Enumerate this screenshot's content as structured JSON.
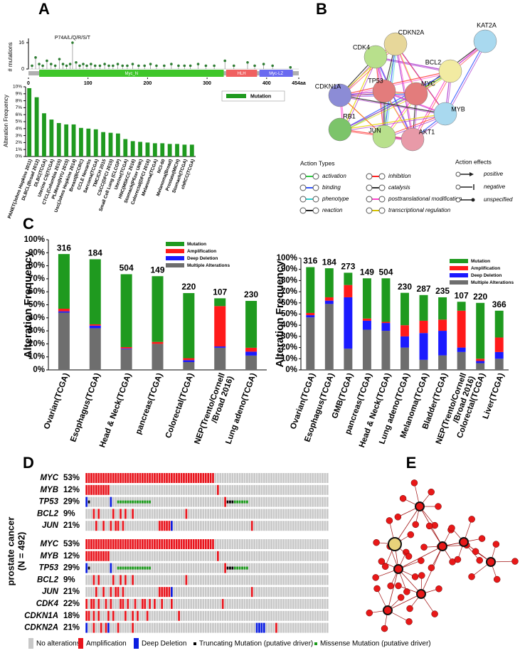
{
  "panel_labels": [
    "A",
    "B",
    "C",
    "D",
    "E"
  ],
  "chart_data": [
    {
      "type": "lollipop",
      "y_label": "# mutations",
      "annotation": "P74A/L/Q/R/S/T",
      "xlim": [
        0,
        454
      ],
      "xticks": [
        0,
        100,
        200,
        300,
        400,
        {
          "value": 454,
          "label": "454aa"
        }
      ],
      "ylim": [
        0,
        16
      ],
      "yticks": [
        0,
        16
      ],
      "color": "#2e7d32",
      "x": [
        6,
        12,
        18,
        24,
        31,
        38,
        45,
        52,
        58,
        64,
        70,
        74,
        80,
        86,
        92,
        98,
        105,
        112,
        120,
        128,
        135,
        142,
        150,
        158,
        166,
        175,
        185,
        195,
        205,
        215,
        228,
        240,
        252,
        262,
        272,
        285,
        298,
        312,
        330,
        345,
        368,
        380,
        395,
        410,
        440
      ],
      "y": [
        2,
        7,
        3,
        2,
        5,
        3,
        2,
        6,
        3,
        2,
        3,
        16,
        4,
        2,
        3,
        2,
        3,
        2,
        2,
        3,
        2,
        2,
        3,
        2,
        2,
        3,
        2,
        2,
        3,
        2,
        2,
        3,
        2,
        2,
        2,
        3,
        2,
        2,
        5,
        2,
        4,
        2,
        3,
        2,
        1
      ],
      "domains": [
        {
          "name": "Myc_N",
          "start": 18,
          "end": 328,
          "color": "#3fc62a"
        },
        {
          "name": "HLH",
          "start": 332,
          "end": 384,
          "color": "#f06060"
        },
        {
          "name": "Myc-LZ",
          "start": 388,
          "end": 444,
          "color": "#6a6af0"
        }
      ]
    },
    {
      "type": "bar",
      "y_label": "Alteration Frequency",
      "categories": [
        "PANET(Johns Hopkins 2011)",
        "DLBCL(Broad 2012)",
        "DLBC(TCGA)",
        "Uterine CS(TCGA)",
        "CTCL(Columbia 2015)",
        "PLMeso(NYU 2015)",
        "Usc(Johns Hopkins 2014)",
        "Breast(BCCRC)",
        "CCLE Novartis",
        "Sarcoma(TCGA)",
        "TMC/CH 2015",
        "CSCC(DFCI 2015)",
        "Small Cell Lung (CLCGP)",
        "Uterine(TCGA)",
        "HNC(MSKCC 2016)",
        "Stomach(Pfizer UHK)",
        "Colorectal(DFCI 2016)",
        "Melanoma(TCGA)",
        "NCI-60",
        "Melanoma(Broad)",
        "Prostate(MICH)",
        "Stomach(TCGA)",
        "chRCC(TCGA)"
      ],
      "series": [
        {
          "name": "Mutation",
          "color": "#1f9a1f",
          "values": [
            9.8,
            8.5,
            6.2,
            5.3,
            4.8,
            4.6,
            4.6,
            4.1,
            4.0,
            3.9,
            3.5,
            3.4,
            3.3,
            2.5,
            2.2,
            2.1,
            2.0,
            1.9,
            1.9,
            1.8,
            1.8,
            1.7,
            1.7
          ]
        }
      ],
      "ylim": [
        0,
        10
      ],
      "yticks": [
        {
          "value": 0,
          "label": "0%"
        },
        {
          "value": 1,
          "label": "1%"
        },
        {
          "value": 2,
          "label": "2%"
        },
        {
          "value": 3,
          "label": "3%"
        },
        {
          "value": 4,
          "label": "4%"
        },
        {
          "value": 5,
          "label": "5%"
        },
        {
          "value": 6,
          "label": "6%"
        },
        {
          "value": 7,
          "label": "7%"
        },
        {
          "value": 8,
          "label": "8%"
        },
        {
          "value": 9,
          "label": "9%"
        },
        {
          "value": 10,
          "label": "10%"
        }
      ]
    },
    {
      "type": "stacked_bar",
      "y_label": "Alteration Frequency",
      "categories": [
        "Ovarian(TCGA)",
        "Esophagus(TCGA)",
        "Head & Neck(TCGA)",
        "pancreas(TCGA)",
        "Colorectal(TCGA)",
        "NEP(Trento/Cornell\n/Broad 2016)",
        "Lung adeno(TCGA)"
      ],
      "sample_counts": [
        316,
        184,
        504,
        149,
        220,
        107,
        230
      ],
      "series": [
        {
          "name": "Multiple Alterations",
          "color": "#6e6e6e",
          "values": [
            44,
            32,
            16,
            20,
            6,
            17,
            11
          ]
        },
        {
          "name": "Deep Deletion",
          "color": "#1a1aff",
          "values": [
            1,
            2,
            0.5,
            0,
            1.5,
            1,
            3
          ]
        },
        {
          "name": "Amplification",
          "color": "#ff1a1a",
          "values": [
            2,
            1,
            1,
            1.5,
            1.5,
            31,
            3
          ]
        },
        {
          "name": "Mutation",
          "color": "#1f9a1f",
          "values": [
            42,
            50,
            56,
            50.5,
            50,
            6,
            36
          ]
        }
      ],
      "ylim": [
        0,
        100
      ],
      "yticks": [
        {
          "value": 0,
          "label": "0%"
        },
        {
          "value": 10,
          "label": "10%"
        },
        {
          "value": 20,
          "label": "20%"
        },
        {
          "value": 30,
          "label": "30%"
        },
        {
          "value": 40,
          "label": "40%"
        },
        {
          "value": 50,
          "label": "50%"
        },
        {
          "value": 60,
          "label": "60%"
        },
        {
          "value": 70,
          "label": "70%"
        },
        {
          "value": 80,
          "label": "80%"
        },
        {
          "value": 90,
          "label": "90%"
        },
        {
          "value": 100,
          "label": "100%"
        }
      ]
    },
    {
      "type": "stacked_bar",
      "y_label": "Alteration Frequency",
      "categories": [
        "Ovarian(TCGA)",
        "Esophagus(TCGA)",
        "GMB(TCGA)",
        "pancreas(TCGA)",
        "Head & Neck(TCGA)",
        "Lung adeno(TCGA)",
        "Melanoma(TCGA)",
        "Bladder(TCGA)",
        "NEP(Trento/Cornell\n/Broad 2016)",
        "Colorectal(TCGA)",
        "Liver(TCGA)"
      ],
      "sample_counts": [
        316,
        184,
        273,
        149,
        504,
        230,
        287,
        235,
        107,
        220,
        366
      ],
      "series": [
        {
          "name": "Multiple Alterations",
          "color": "#6e6e6e",
          "values": [
            47,
            59,
            19,
            36,
            35,
            20,
            9,
            13,
            16,
            6,
            10
          ]
        },
        {
          "name": "Deep Deletion",
          "color": "#1a1aff",
          "values": [
            2,
            3,
            46,
            8,
            7,
            10,
            24,
            22,
            4,
            2,
            6
          ]
        },
        {
          "name": "Amplification",
          "color": "#ff1a1a",
          "values": [
            2,
            3,
            11,
            2,
            1,
            10,
            11,
            10,
            33,
            2,
            13
          ]
        },
        {
          "name": "Mutation",
          "color": "#1f9a1f",
          "values": [
            41,
            26,
            11,
            36,
            39,
            29,
            23,
            20,
            8,
            50,
            24
          ]
        }
      ],
      "ylim": [
        0,
        100
      ],
      "yticks": [
        {
          "value": 0,
          "label": "0%"
        },
        {
          "value": 10,
          "label": "10%"
        },
        {
          "value": 20,
          "label": "20%"
        },
        {
          "value": 30,
          "label": "30%"
        },
        {
          "value": 40,
          "label": "40%"
        },
        {
          "value": 50,
          "label": "50%"
        },
        {
          "value": 60,
          "label": "60%"
        },
        {
          "value": 70,
          "label": "70%"
        },
        {
          "value": 80,
          "label": "80%"
        },
        {
          "value": 90,
          "label": "90%"
        },
        {
          "value": 100,
          "label": "100%"
        }
      ]
    }
  ],
  "network_b": {
    "nodes": [
      "CDK4",
      "CDKN2A",
      "KAT2A",
      "BCL2",
      "MYC",
      "TP53",
      "CDKN1A",
      "RB1",
      "MYB",
      "JUN",
      "AKT1"
    ],
    "action_types_title": "Action Types",
    "action_types": [
      "activation",
      "inhibition",
      "binding",
      "catalysis",
      "phenotype",
      "posttranslational modification",
      "reaction",
      "transcriptional regulation"
    ],
    "action_effects_title": "Action effects",
    "action_effects": [
      "positive",
      "negative",
      "unspecified"
    ]
  },
  "oncoprint": {
    "y_label": [
      "prostate cancer",
      "(N = 492)"
    ],
    "legend": [
      {
        "label": "No alterations",
        "color": "#c8c8c8"
      },
      {
        "label": "Amplification",
        "color": "#e8141c"
      },
      {
        "label": "Deep Deletion",
        "color": "#0b1de0"
      },
      {
        "label": "Truncating Mutation (putative driver)",
        "color": "#000000"
      },
      {
        "label": "Missense Mutation (putative driver)",
        "color": "#1a9a1a"
      }
    ],
    "blocks": [
      [
        {
          "gene": "MYC",
          "percent": "53%",
          "cells": "1111111111111111111111111111111111111111111111111111100000000000000000000000000000000000000000000000"
        },
        {
          "gene": "MYB",
          "percent": "12%",
          "cells": "1111111111000000000000000000000000000000000000000000001000000000000000000000000000000000000000000000"
        },
        {
          "gene": "TP53",
          "percent": "29%",
          "cells": "2300000000200444444444444440000000000000000000000000000001333444444000000000000000000000000000000000"
        },
        {
          "gene": "BCL2",
          "percent": "9%",
          "cells": "0001010000010010100100000000000000000000010000000000000000000000000000000000000000000000000000000000"
        },
        {
          "gene": "JUN",
          "percent": "21%",
          "cells": "0000100100101101000000000000001111120000000000000000000000000000000010000000000000000000000000000000"
        }
      ],
      [
        {
          "gene": "MYC",
          "percent": "53%",
          "cells": "1111111111111111111111111111111111111111111111111111100000000000000000000000000000000000000000000000"
        },
        {
          "gene": "MYB",
          "percent": "12%",
          "cells": "1111111111000000000000000000000000000000000000000000001000000000000000000000000000000000000000000000"
        },
        {
          "gene": "TP53",
          "percent": "29%",
          "cells": "2300000000200444444444444440000000000000000000000000000001333444444000000000000000000000000000000000"
        },
        {
          "gene": "BCL2",
          "percent": "9%",
          "cells": "0001010000010010100100000000000000000000010000000000000000000000000000000000000000000000000000000000"
        },
        {
          "gene": "JUN",
          "percent": "21%",
          "cells": "0000100100101101000000000000001111120000000000000000000000000000000010000000000000000000000000000000"
        },
        {
          "gene": "CDK4",
          "percent": "22%",
          "cells": "1011010010100011010010011010100100010000000000000000000010000000000000000000000000000000000000000000"
        },
        {
          "gene": "CDKN1A",
          "percent": "18%",
          "cells": "1101010001010000100101000100000000000010000000000000000000000000000000000000000000000000000000000000"
        },
        {
          "gene": "CDKN2A",
          "percent": "21%",
          "cells": "2001001012000100000100000000000000000000000000000000000000000000000000222200001000000000000000000000"
        }
      ]
    ]
  }
}
